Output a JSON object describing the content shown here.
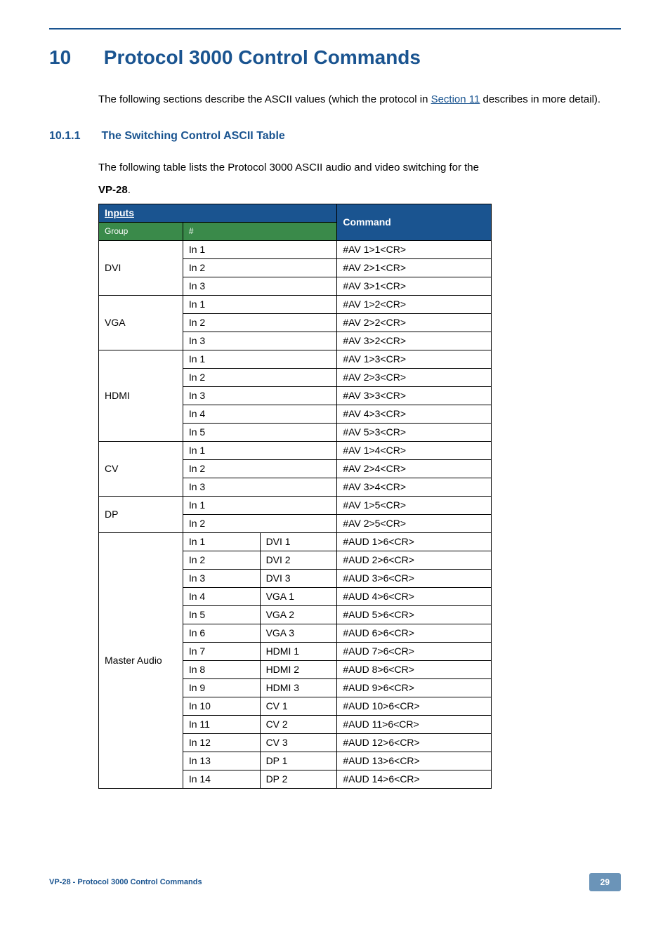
{
  "section": {
    "number": "10",
    "title": "Protocol 3000 Control Commands",
    "intro_pre": "The following sections describe the ASCII values (which the protocol in ",
    "intro_link": "Section 11",
    "intro_post": " describes in more detail)."
  },
  "subsection": {
    "number": "10.1.1",
    "title": "The Switching Control ASCII Table",
    "intro_line1": "The following table lists the Protocol 3000 ASCII audio and video switching for the",
    "intro_device": "VP-28",
    "intro_period": "."
  },
  "table": {
    "headers": {
      "inputs": "Inputs",
      "command": "Command",
      "group": "Group",
      "hash": "#"
    },
    "col_widths": {
      "group": "120px",
      "num": "110px",
      "sub": "110px",
      "cmd": "220px"
    },
    "header_bg_primary": "#1a5490",
    "header_bg_secondary": "#3a8a4a",
    "rows": [
      {
        "group": "DVI",
        "rowspan": 3,
        "num": "In 1",
        "numspan": 2,
        "cmd": "#AV 1>1<CR>"
      },
      {
        "num": "In 2",
        "numspan": 2,
        "cmd": "#AV 2>1<CR>"
      },
      {
        "num": "In 3",
        "numspan": 2,
        "cmd": "#AV 3>1<CR>"
      },
      {
        "group": "VGA",
        "rowspan": 3,
        "num": "In 1",
        "numspan": 2,
        "cmd": "#AV 1>2<CR>"
      },
      {
        "num": "In 2",
        "numspan": 2,
        "cmd": "#AV 2>2<CR>"
      },
      {
        "num": "In 3",
        "numspan": 2,
        "cmd": "#AV 3>2<CR>"
      },
      {
        "group": "HDMI",
        "rowspan": 5,
        "num": "In 1",
        "numspan": 2,
        "cmd": "#AV 1>3<CR>"
      },
      {
        "num": "In 2",
        "numspan": 2,
        "cmd": "#AV 2>3<CR>"
      },
      {
        "num": "In 3",
        "numspan": 2,
        "cmd": "#AV 3>3<CR>"
      },
      {
        "num": "In 4",
        "numspan": 2,
        "cmd": "#AV 4>3<CR>"
      },
      {
        "num": "In 5",
        "numspan": 2,
        "cmd": "#AV 5>3<CR>"
      },
      {
        "group": "CV",
        "rowspan": 3,
        "num": "In 1",
        "numspan": 2,
        "cmd": "#AV 1>4<CR>"
      },
      {
        "num": "In 2",
        "numspan": 2,
        "cmd": "#AV 2>4<CR>"
      },
      {
        "num": "In 3",
        "numspan": 2,
        "cmd": "#AV 3>4<CR>"
      },
      {
        "group": "DP",
        "rowspan": 2,
        "num": "In 1",
        "numspan": 2,
        "cmd": "#AV 1>5<CR>"
      },
      {
        "num": "In 2",
        "numspan": 2,
        "cmd": "#AV 2>5<CR>"
      },
      {
        "group": "Master Audio",
        "rowspan": 14,
        "num": "In 1",
        "sub": "DVI 1",
        "cmd": "#AUD 1>6<CR>"
      },
      {
        "num": "In 2",
        "sub": "DVI 2",
        "cmd": "#AUD 2>6<CR>"
      },
      {
        "num": "In 3",
        "sub": "DVI 3",
        "cmd": "#AUD 3>6<CR>"
      },
      {
        "num": "In 4",
        "sub": "VGA 1",
        "cmd": "#AUD 4>6<CR>"
      },
      {
        "num": "In 5",
        "sub": "VGA 2",
        "cmd": "#AUD 5>6<CR>"
      },
      {
        "num": "In 6",
        "sub": "VGA 3",
        "cmd": "#AUD 6>6<CR>"
      },
      {
        "num": "In 7",
        "sub": "HDMI 1",
        "cmd": "#AUD 7>6<CR>"
      },
      {
        "num": "In 8",
        "sub": "HDMI 2",
        "cmd": "#AUD 8>6<CR>"
      },
      {
        "num": "In 9",
        "sub": "HDMI 3",
        "cmd": "#AUD 9>6<CR>"
      },
      {
        "num": "In 10",
        "sub": "CV 1",
        "cmd": "#AUD 10>6<CR>"
      },
      {
        "num": "In 11",
        "sub": "CV 2",
        "cmd": "#AUD 11>6<CR>"
      },
      {
        "num": "In 12",
        "sub": "CV 3",
        "cmd": "#AUD 12>6<CR>"
      },
      {
        "num": "In 13",
        "sub": "DP 1",
        "cmd": "#AUD 13>6<CR>"
      },
      {
        "num": "In 14",
        "sub": "DP 2",
        "cmd": "#AUD 14>6<CR>"
      }
    ]
  },
  "footer": {
    "left": "VP-28 - Protocol 3000 Control Commands",
    "page": "29"
  }
}
